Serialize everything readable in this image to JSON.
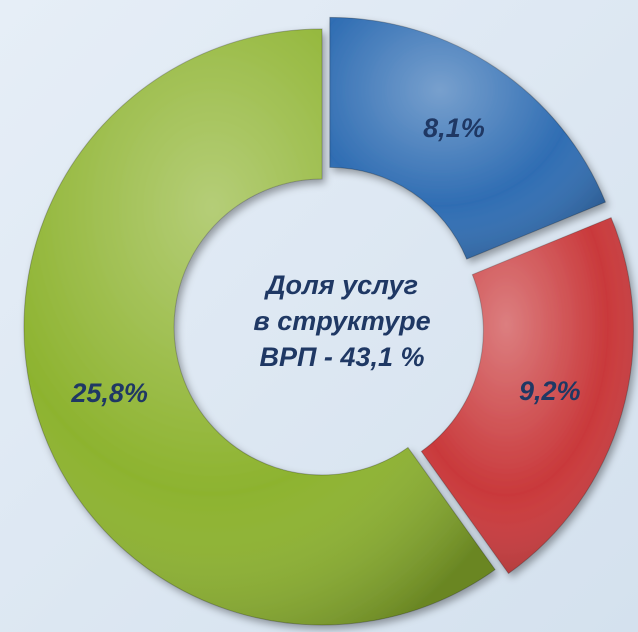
{
  "chart_data": {
    "type": "donut",
    "series": [
      {
        "values": [
          8.1,
          9.2,
          25.8
        ],
        "value_labels": [
          "8,1%",
          "9,2%",
          "25,8%"
        ],
        "colors": [
          "#2f6db3",
          "#c9393b",
          "#8db32f"
        ]
      }
    ],
    "annotation": [
      "Доля услуг",
      "в структуре",
      "ВРП - 43,1 %"
    ]
  }
}
